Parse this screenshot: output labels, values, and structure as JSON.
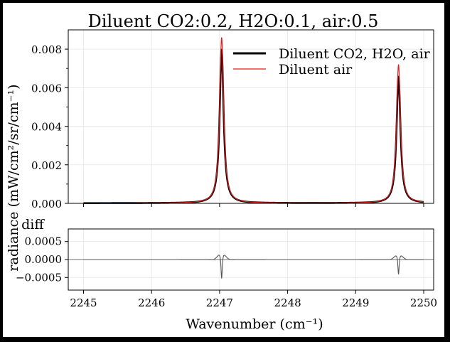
{
  "chart_data": [
    {
      "type": "line",
      "title": "Diluent CO2:0.2, H2O:0.1, air:0.5",
      "ylabel": "radiance (mW/cm²/sr/cm⁻¹)",
      "xlim": [
        2245,
        2250
      ],
      "ylim": [
        0,
        0.009
      ],
      "yticks": [
        "0.000",
        "0.002",
        "0.004",
        "0.006",
        "0.008"
      ],
      "grid": true,
      "legend": "top-right",
      "series": [
        {
          "name": "Diluent CO2, H2O, air",
          "color": "#000000",
          "peaks": [
            {
              "x": 2247.03,
              "y": 0.008
            },
            {
              "x": 2249.63,
              "y": 0.0066
            }
          ],
          "baseline": 1e-05
        },
        {
          "name": "Diluent air",
          "color": "#e41a1c",
          "peaks": [
            {
              "x": 2247.03,
              "y": 0.0086
            },
            {
              "x": 2249.63,
              "y": 0.0072
            }
          ],
          "baseline": 1e-05
        }
      ]
    },
    {
      "type": "line",
      "panel_label": "diff",
      "xlabel": "Wavenumber (cm⁻¹)",
      "xlim": [
        2245,
        2250
      ],
      "ylim": [
        -0.00085,
        0.00085
      ],
      "xticks": [
        "2245",
        "2246",
        "2247",
        "2248",
        "2249",
        "2250"
      ],
      "yticks": [
        "0.0005",
        "0.0000",
        "−0.0005"
      ],
      "grid": true,
      "series": [
        {
          "color": "#555555",
          "features": [
            {
              "x": 2247.03,
              "min": -0.00078,
              "side_max": 0.00012
            },
            {
              "x": 2249.63,
              "min": -0.00062,
              "side_max": 0.0001
            }
          ]
        }
      ]
    }
  ]
}
